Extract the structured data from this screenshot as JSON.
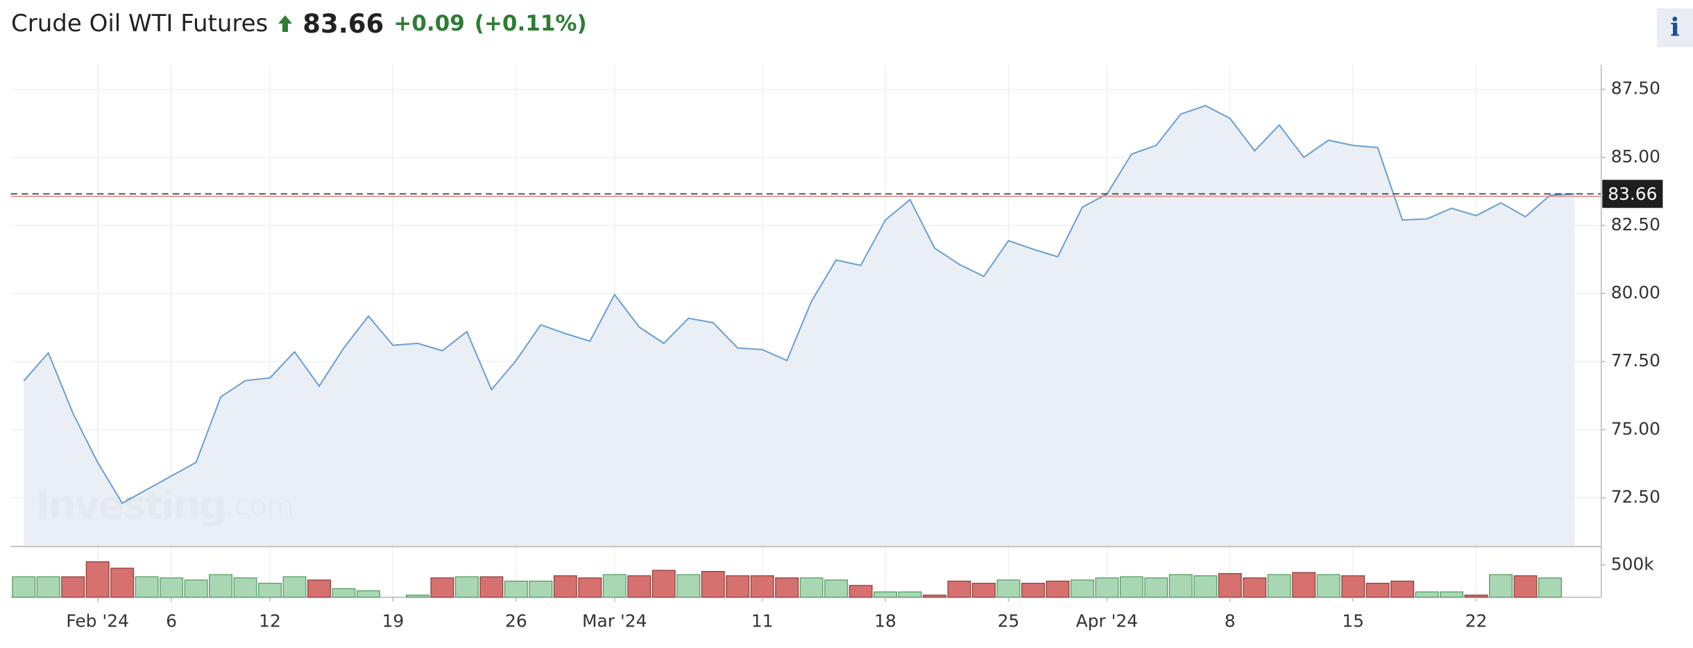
{
  "chart_data": {
    "type": "area",
    "title": "Crude Oil WTI Futures",
    "price": 83.66,
    "change": "+0.09",
    "change_percent": "(+0.11%)",
    "prev_close": 83.57,
    "info_button": "i",
    "watermark": [
      "Investing",
      ".com"
    ],
    "x": [
      "2024-01-29",
      "2024-01-30",
      "2024-01-31",
      "2024-02-01",
      "2024-02-02",
      "2024-02-05",
      "2024-02-06",
      "2024-02-07",
      "2024-02-08",
      "2024-02-09",
      "2024-02-12",
      "2024-02-13",
      "2024-02-14",
      "2024-02-15",
      "2024-02-16",
      "2024-02-19",
      "2024-02-20",
      "2024-02-21",
      "2024-02-22",
      "2024-02-23",
      "2024-02-26",
      "2024-02-27",
      "2024-02-28",
      "2024-02-29",
      "2024-03-01",
      "2024-03-04",
      "2024-03-05",
      "2024-03-06",
      "2024-03-07",
      "2024-03-08",
      "2024-03-11",
      "2024-03-12",
      "2024-03-13",
      "2024-03-14",
      "2024-03-15",
      "2024-03-18",
      "2024-03-19",
      "2024-03-20",
      "2024-03-21",
      "2024-03-22",
      "2024-03-25",
      "2024-03-26",
      "2024-03-27",
      "2024-03-28",
      "2024-04-01",
      "2024-04-02",
      "2024-04-03",
      "2024-04-04",
      "2024-04-05",
      "2024-04-08",
      "2024-04-09",
      "2024-04-10",
      "2024-04-11",
      "2024-04-12",
      "2024-04-15",
      "2024-04-16",
      "2024-04-17",
      "2024-04-18",
      "2024-04-19",
      "2024-04-22",
      "2024-04-23",
      "2024-04-24",
      "2024-04-25",
      "2024-04-26"
    ],
    "series": [
      {
        "name": "Price",
        "color": "#6a9fd0",
        "fill": "#e8edf4",
        "values": [
          76.79,
          77.82,
          75.6,
          73.8,
          72.3,
          72.8,
          73.3,
          73.8,
          76.2,
          76.8,
          76.9,
          77.86,
          76.6,
          78.0,
          79.17,
          78.1,
          78.17,
          77.9,
          78.6,
          76.47,
          77.54,
          78.85,
          78.53,
          78.25,
          79.96,
          78.77,
          78.17,
          79.09,
          78.93,
          78.0,
          77.94,
          77.54,
          79.72,
          81.23,
          81.03,
          82.7,
          83.45,
          81.67,
          81.07,
          80.63,
          81.94,
          81.63,
          81.35,
          83.17,
          83.65,
          85.12,
          85.44,
          86.59,
          86.9,
          86.43,
          85.24,
          86.19,
          85.0,
          85.63,
          85.44,
          85.36,
          82.7,
          82.74,
          83.13,
          82.86,
          83.33,
          82.82,
          83.61,
          83.66
        ]
      }
    ],
    "ylim": [
      70.75,
      88.4
    ],
    "yticks": [
      {
        "value": 72.5,
        "label": "72.50"
      },
      {
        "value": 75,
        "label": "75.00"
      },
      {
        "value": 77.5,
        "label": "77.50"
      },
      {
        "value": 80,
        "label": "80.00"
      },
      {
        "value": 82.5,
        "label": "82.50"
      },
      {
        "value": 85,
        "label": "85.00"
      },
      {
        "value": 87.5,
        "label": "87.50"
      }
    ],
    "xticks": [
      {
        "value": "2024-02-01",
        "label": "Feb '24"
      },
      {
        "value": "2024-02-06",
        "label": "6"
      },
      {
        "value": "2024-02-12",
        "label": "12"
      },
      {
        "value": "2024-02-19",
        "label": "19"
      },
      {
        "value": "2024-02-26",
        "label": "26"
      },
      {
        "value": "2024-03-01",
        "label": "Mar '24"
      },
      {
        "value": "2024-03-11",
        "label": "11"
      },
      {
        "value": "2024-03-18",
        "label": "18"
      },
      {
        "value": "2024-03-25",
        "label": "25"
      },
      {
        "value": "2024-04-01",
        "label": "Apr '24"
      },
      {
        "value": "2024-04-08",
        "label": "8"
      },
      {
        "value": "2024-04-15",
        "label": "15"
      },
      {
        "value": "2024-04-22",
        "label": "22"
      }
    ],
    "grid": true,
    "volume": {
      "values": [
        317000,
        317000,
        317000,
        550000,
        450000,
        317000,
        300000,
        267000,
        350000,
        300000,
        217000,
        317000,
        267000,
        133000,
        100000,
        null,
        33000,
        300000,
        317000,
        317000,
        250000,
        250000,
        333000,
        300000,
        350000,
        333000,
        417000,
        350000,
        400000,
        333000,
        333000,
        300000,
        300000,
        267000,
        183000,
        83000,
        83000,
        33000,
        250000,
        217000,
        267000,
        217000,
        250000,
        267000,
        300000,
        317000,
        300000,
        350000,
        333000,
        367000,
        300000,
        350000,
        383000,
        350000,
        333000,
        217000,
        250000,
        83000,
        83000,
        33000,
        350000,
        333000,
        300000,
        null
      ],
      "colors": [
        "#a9d7b3",
        "#a9d7b3",
        "#d6716f",
        "#d6716f",
        "#d6716f",
        "#a9d7b3",
        "#a9d7b3",
        "#a9d7b3",
        "#a9d7b3",
        "#a9d7b3",
        "#a9d7b3",
        "#a9d7b3",
        "#d6716f",
        "#a9d7b3",
        "#a9d7b3",
        null,
        "#a9d7b3",
        "#d6716f",
        "#a9d7b3",
        "#d6716f",
        "#a9d7b3",
        "#a9d7b3",
        "#d6716f",
        "#d6716f",
        "#a9d7b3",
        "#d6716f",
        "#d6716f",
        "#a9d7b3",
        "#d6716f",
        "#d6716f",
        "#d6716f",
        "#d6716f",
        "#a9d7b3",
        "#a9d7b3",
        "#d6716f",
        "#a9d7b3",
        "#a9d7b3",
        "#d6716f",
        "#d6716f",
        "#d6716f",
        "#a9d7b3",
        "#d6716f",
        "#d6716f",
        "#a9d7b3",
        "#a9d7b3",
        "#a9d7b3",
        "#a9d7b3",
        "#a9d7b3",
        "#a9d7b3",
        "#d6716f",
        "#d6716f",
        "#a9d7b3",
        "#d6716f",
        "#a9d7b3",
        "#d6716f",
        "#d6716f",
        "#d6716f",
        "#a9d7b3",
        "#a9d7b3",
        "#d6716f",
        "#a9d7b3",
        "#d6716f",
        "#a9d7b3",
        null
      ],
      "ylim": [
        0,
        770000
      ],
      "yticks": [
        {
          "value": 500000,
          "label": "500k"
        }
      ]
    }
  }
}
